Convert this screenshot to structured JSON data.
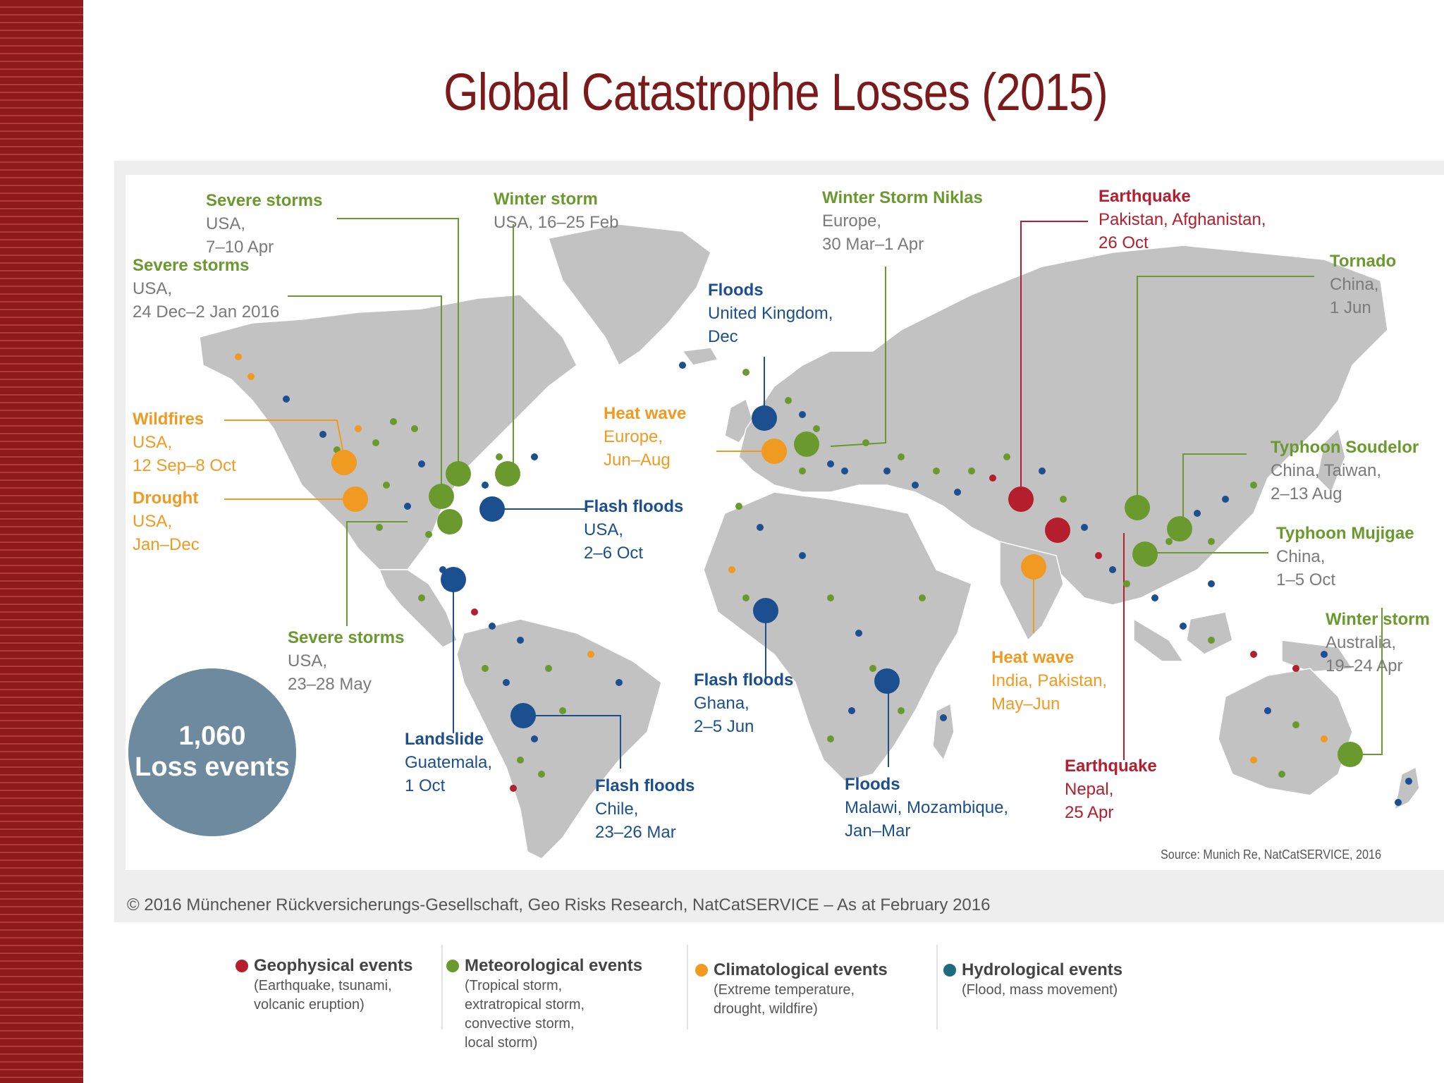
{
  "title": "Global Catastrophe Losses (2015)",
  "colors": {
    "geophysical": "#b41e2d",
    "meteorological": "#6a9a2e",
    "climatological": "#f19a21",
    "hydrological": "#1b4f8f",
    "land": "#c2c2c2",
    "title": "#7a1a1a",
    "badge": "#6d8a9e"
  },
  "total": {
    "count": "1,060",
    "label": "Loss events"
  },
  "annotations": {
    "severe_storms_apr": {
      "head": "Severe storms",
      "lines": [
        "USA,",
        "7–10 Apr"
      ]
    },
    "severe_storms_dec": {
      "head": "Severe storms",
      "lines": [
        "USA,",
        "24 Dec–2 Jan 2016"
      ]
    },
    "winter_storm_usa": {
      "head": "Winter storm",
      "lines": [
        "USA, 16–25 Feb"
      ]
    },
    "winter_storm_niklas": {
      "head": "Winter Storm Niklas",
      "lines": [
        "Europe,",
        "30 Mar–1 Apr"
      ]
    },
    "earthquake_pakistan": {
      "head": "Earthquake",
      "lines": [
        "Pakistan, Afghanistan,",
        "26 Oct"
      ]
    },
    "tornado_china": {
      "head": "Tornado",
      "lines": [
        "China,",
        "1 Jun"
      ]
    },
    "floods_uk": {
      "head": "Floods",
      "lines": [
        "United Kingdom,",
        "Dec"
      ]
    },
    "wildfires_usa": {
      "head": "Wildfires",
      "lines": [
        "USA,",
        "12 Sep–8 Oct"
      ]
    },
    "heat_wave_europe": {
      "head": "Heat wave",
      "lines": [
        "Europe,",
        "Jun–Aug"
      ]
    },
    "typhoon_soudelor": {
      "head": "Typhoon Soudelor",
      "lines": [
        "China, Taiwan,",
        "2–13 Aug"
      ]
    },
    "drought_usa": {
      "head": "Drought",
      "lines": [
        "USA,",
        "Jan–Dec"
      ]
    },
    "flash_floods_usa": {
      "head": "Flash floods",
      "lines": [
        "USA,",
        "2–6 Oct"
      ]
    },
    "typhoon_mujigae": {
      "head": "Typhoon Mujigae",
      "lines": [
        "China,",
        "1–5 Oct"
      ]
    },
    "winter_storm_australia": {
      "head": "Winter storm",
      "lines": [
        "Australia,",
        "19–24 Apr"
      ]
    },
    "severe_storms_may": {
      "head": "Severe storms",
      "lines": [
        "USA,",
        "23–28 May"
      ]
    },
    "flash_floods_ghana": {
      "head": "Flash floods",
      "lines": [
        "Ghana,",
        "2–5 Jun"
      ]
    },
    "heat_wave_india": {
      "head": "Heat wave",
      "lines": [
        "India, Pakistan,",
        "May–Jun"
      ]
    },
    "landslide_guatemala": {
      "head": "Landslide",
      "lines": [
        "Guatemala,",
        "1 Oct"
      ]
    },
    "earthquake_nepal": {
      "head": "Earthquake",
      "lines": [
        "Nepal,",
        "25 Apr"
      ]
    },
    "flash_floods_chile": {
      "head": "Flash floods",
      "lines": [
        "Chile,",
        "23–26 Mar"
      ]
    },
    "floods_malawi": {
      "head": "Floods",
      "lines": [
        "Malawi, Mozambique,",
        "Jan–Mar"
      ]
    }
  },
  "source": "Source: Munich Re, NatCatSERVICE, 2016",
  "copyright": "© 2016 Münchener Rückversicherungs-Gesellschaft, Geo Risks Research, NatCatSERVICE – As at February 2016",
  "legend": [
    {
      "key": "geophysical",
      "title": "Geophysical events",
      "desc": [
        "(Earthquake, tsunami,",
        "volcanic eruption)"
      ]
    },
    {
      "key": "meteorological",
      "title": "Meteorological events",
      "desc": [
        "(Tropical storm,",
        "extratropical storm,",
        "convective storm,",
        "local storm)"
      ]
    },
    {
      "key": "climatological",
      "title": "Climatological events",
      "desc": [
        "(Extreme temperature,",
        "drought, wildfire)"
      ]
    },
    {
      "key": "hydrological",
      "title": "Hydrological events",
      "desc": [
        "(Flood, mass movement)"
      ]
    }
  ]
}
